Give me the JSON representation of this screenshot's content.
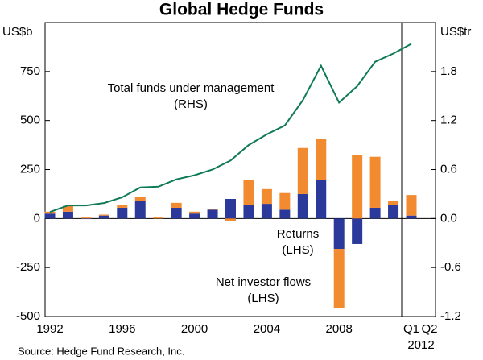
{
  "chart_data": {
    "type": "bar",
    "title": "Global Hedge Funds",
    "y_unit": "US$b",
    "y2_unit": "US$tr",
    "categories": [
      "1992",
      null,
      null,
      null,
      "1996",
      null,
      null,
      null,
      "2000",
      null,
      null,
      null,
      "2004",
      null,
      null,
      null,
      "2008",
      null,
      null,
      null,
      "Q1",
      "Q2"
    ],
    "category_group_label": "2012",
    "series": [
      {
        "name": "Returns",
        "type": "bar",
        "color": "#2b3a9a",
        "annotation": "(LHS)",
        "values": [
          25,
          35,
          -3,
          15,
          55,
          90,
          0,
          55,
          25,
          45,
          100,
          70,
          75,
          45,
          125,
          195,
          -155,
          -130,
          55,
          70,
          15,
          null
        ]
      },
      {
        "name": "Net investor flows",
        "type": "bar",
        "color": "#f28a30",
        "annotation": "(LHS)",
        "values": [
          10,
          30,
          5,
          5,
          15,
          20,
          5,
          25,
          10,
          5,
          -15,
          125,
          75,
          85,
          235,
          210,
          -300,
          325,
          260,
          20,
          105,
          null
        ]
      },
      {
        "name": "Total funds under management",
        "type": "line",
        "color": "#0f7a57",
        "axis": "y2",
        "annotation": "(RHS)",
        "values": [
          0.08,
          0.16,
          0.16,
          0.19,
          0.26,
          0.38,
          0.39,
          0.48,
          0.53,
          0.6,
          0.71,
          0.9,
          1.03,
          1.14,
          1.45,
          1.87,
          1.42,
          1.62,
          1.92,
          2.02,
          2.14,
          null
        ]
      }
    ],
    "ylim": [
      -500,
      1000
    ],
    "yticks": [
      -500,
      -250,
      0,
      250,
      500,
      750
    ],
    "y2lim": [
      -1.2,
      2.4
    ],
    "y2ticks": [
      -1.2,
      -0.6,
      {
        "value": 0,
        "label": "0.0"
      },
      0.6,
      1.2,
      1.8
    ],
    "source": "Source: Hedge Fund Research, Inc."
  }
}
